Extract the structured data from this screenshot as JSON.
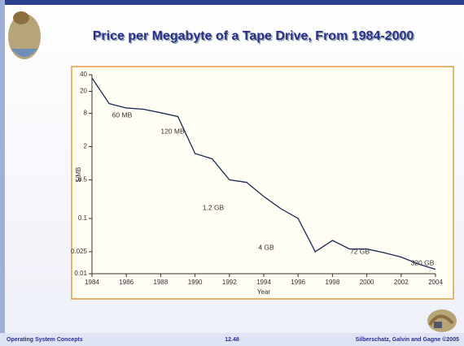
{
  "title": "Price per Megabyte of a Tape Drive, From 1984-2000",
  "footer": {
    "left": "Operating System Concepts",
    "center": "12.48",
    "right": "Silberschatz, Galvin and Gagne ©2005"
  },
  "chart_data": {
    "type": "line",
    "log_y": true,
    "color": "#1a2a50",
    "x": [
      1984,
      1985,
      1986,
      1987,
      1988,
      1989,
      1990,
      1991,
      1992,
      1993,
      1994,
      1995,
      1996,
      1997,
      1998,
      1999,
      2000,
      2001,
      2002,
      2003,
      2004
    ],
    "values": [
      35,
      12,
      10,
      9.5,
      8.2,
      7,
      1.5,
      1.2,
      0.5,
      0.45,
      0.25,
      0.15,
      0.1,
      0.025,
      0.04,
      0.028,
      0.028,
      0.024,
      0.02,
      0.015,
      0.012
    ],
    "xlim": [
      1984,
      2004
    ],
    "xticks": [
      1984,
      1986,
      1988,
      1990,
      1992,
      1994,
      1996,
      1998,
      2000,
      2002,
      2004
    ],
    "ylim": [
      0.01,
      40
    ],
    "yticks": [
      0.01,
      0.025,
      0.1,
      0.5,
      2,
      8,
      20,
      40
    ],
    "xlabel": "Year",
    "ylabel": "$/MB",
    "annotations": [
      "60 MB",
      "120 MB",
      "1.2 GB",
      "4 GB",
      "72 GB",
      "320 GB"
    ]
  }
}
